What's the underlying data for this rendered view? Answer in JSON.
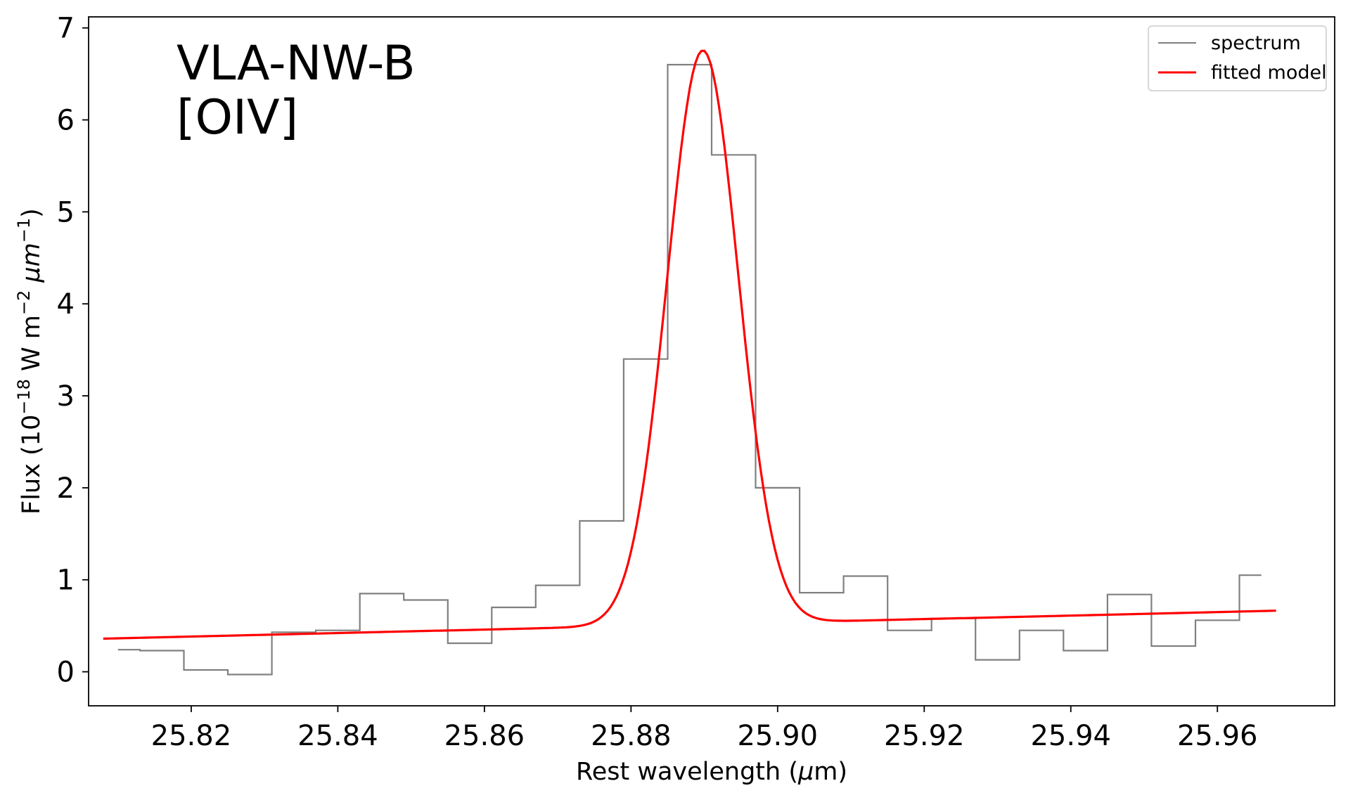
{
  "chart_data": {
    "type": "line",
    "annotation": [
      "VLA-NW-B",
      "[OIV]"
    ],
    "xlabel_text": "Rest wavelength (",
    "xlabel_symbol": "μ",
    "xlabel_unit": "m)",
    "ylabel_prefix": "Flux (10",
    "ylabel_exp1": "−18",
    "ylabel_mid": " W m",
    "ylabel_exp2": "−2",
    "ylabel_sym": " μm",
    "ylabel_exp3": "−1",
    "ylabel_suffix": ")",
    "xlim": [
      25.806,
      25.976
    ],
    "ylim": [
      -0.37,
      7.12
    ],
    "x_ticks": [
      25.82,
      25.84,
      25.86,
      25.88,
      25.9,
      25.92,
      25.94,
      25.96
    ],
    "x_tick_labels": [
      "25.82",
      "25.84",
      "25.86",
      "25.88",
      "25.90",
      "25.92",
      "25.94",
      "25.96"
    ],
    "y_ticks": [
      0,
      1,
      2,
      3,
      4,
      5,
      6,
      7
    ],
    "y_tick_labels": [
      "0",
      "1",
      "2",
      "3",
      "4",
      "5",
      "6",
      "7"
    ],
    "legend_position": "upper right",
    "series": [
      {
        "name": "spectrum",
        "style": "step",
        "color": "#808080",
        "x": [
          25.81,
          25.813,
          25.819,
          25.825,
          25.831,
          25.837,
          25.843,
          25.849,
          25.855,
          25.861,
          25.867,
          25.873,
          25.879,
          25.885,
          25.891,
          25.897,
          25.903,
          25.909,
          25.915,
          25.921,
          25.927,
          25.933,
          25.939,
          25.945,
          25.951,
          25.957,
          25.963,
          25.966
        ],
        "y": [
          0.24,
          0.23,
          0.02,
          -0.03,
          0.43,
          0.45,
          0.85,
          0.78,
          0.31,
          0.7,
          0.94,
          1.64,
          3.4,
          6.6,
          5.62,
          2.0,
          0.86,
          1.04,
          0.45,
          0.58,
          0.13,
          0.45,
          0.23,
          0.84,
          0.28,
          0.56,
          1.05,
          1.05
        ]
      },
      {
        "name": "fitted model",
        "style": "line",
        "color": "#ff0000",
        "model": {
          "x_start": 25.808,
          "x_end": 25.968,
          "continuum_a": 0.36,
          "continuum_slope": 1.9,
          "peak_center": 25.8898,
          "peak_amplitude": 6.24,
          "peak_sigma": 0.00485
        }
      }
    ]
  }
}
